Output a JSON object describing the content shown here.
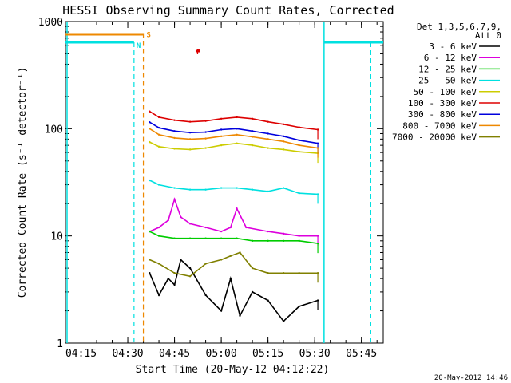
{
  "chart_data": {
    "type": "line",
    "title": "HESSI Observing Summary Count Rates, Corrected",
    "xlabel": "Start Time (20-May-12 04:12:22)",
    "ylabel": "Corrected Count Rate (s⁻¹ detector⁻¹)",
    "yscale": "log",
    "xlim": [
      "04:10",
      "05:52"
    ],
    "ylim": [
      1,
      1000
    ],
    "xticks": [
      "04:15",
      "04:30",
      "04:45",
      "05:00",
      "05:15",
      "05:30",
      "05:45"
    ],
    "yticks": [
      {
        "value": 1,
        "label": "1"
      },
      {
        "value": 10,
        "label": "10"
      },
      {
        "value": 100,
        "label": "100"
      },
      {
        "value": 1000,
        "label": "1000"
      }
    ],
    "legend_header": [
      "Det 1,3,5,6,7,9,",
      "Att 0"
    ],
    "legend_placement": "right",
    "series": [
      {
        "name": "3 - 6 keV",
        "color": "#000000",
        "points": [
          [
            "04:37",
            4.5
          ],
          [
            "04:40",
            2.8
          ],
          [
            "04:43",
            4
          ],
          [
            "04:45",
            3.5
          ],
          [
            "04:47",
            6
          ],
          [
            "04:50",
            5
          ],
          [
            "04:55",
            2.8
          ],
          [
            "05:00",
            2
          ],
          [
            "05:03",
            4
          ],
          [
            "05:06",
            1.8
          ],
          [
            "05:10",
            3
          ],
          [
            "05:15",
            2.5
          ],
          [
            "05:20",
            1.6
          ],
          [
            "05:25",
            2.2
          ],
          [
            "05:31",
            2.5
          ]
        ]
      },
      {
        "name": "6 - 12 keV",
        "color": "#dd00dd",
        "points": [
          [
            "04:37",
            11
          ],
          [
            "04:40",
            12
          ],
          [
            "04:43",
            14
          ],
          [
            "04:45",
            22
          ],
          [
            "04:47",
            15
          ],
          [
            "04:50",
            13
          ],
          [
            "04:55",
            12
          ],
          [
            "05:00",
            11
          ],
          [
            "05:03",
            12
          ],
          [
            "05:05",
            18
          ],
          [
            "05:08",
            12
          ],
          [
            "05:15",
            11
          ],
          [
            "05:20",
            10.5
          ],
          [
            "05:25",
            10
          ],
          [
            "05:31",
            10
          ]
        ]
      },
      {
        "name": "12 - 25 keV",
        "color": "#00cc00",
        "points": [
          [
            "04:37",
            11
          ],
          [
            "04:40",
            10
          ],
          [
            "04:45",
            9.5
          ],
          [
            "04:50",
            9.5
          ],
          [
            "04:55",
            9.5
          ],
          [
            "05:00",
            9.5
          ],
          [
            "05:05",
            9.5
          ],
          [
            "05:10",
            9
          ],
          [
            "05:15",
            9
          ],
          [
            "05:20",
            9
          ],
          [
            "05:25",
            9
          ],
          [
            "05:31",
            8.5
          ]
        ]
      },
      {
        "name": "25 - 50 keV",
        "color": "#00e0e0",
        "points": [
          [
            "04:37",
            33
          ],
          [
            "04:40",
            30
          ],
          [
            "04:45",
            28
          ],
          [
            "04:50",
            27
          ],
          [
            "04:55",
            27
          ],
          [
            "05:00",
            28
          ],
          [
            "05:05",
            28
          ],
          [
            "05:10",
            27
          ],
          [
            "05:15",
            26
          ],
          [
            "05:20",
            28
          ],
          [
            "05:25",
            25
          ],
          [
            "05:31",
            24.5
          ]
        ]
      },
      {
        "name": "50 - 100 keV",
        "color": "#cccc00",
        "points": [
          [
            "04:37",
            75
          ],
          [
            "04:40",
            68
          ],
          [
            "04:45",
            65
          ],
          [
            "04:50",
            64
          ],
          [
            "04:55",
            66
          ],
          [
            "05:00",
            70
          ],
          [
            "05:05",
            73
          ],
          [
            "05:10",
            70
          ],
          [
            "05:15",
            66
          ],
          [
            "05:20",
            64
          ],
          [
            "05:25",
            61
          ],
          [
            "05:31",
            59
          ]
        ]
      },
      {
        "name": "100 - 300 keV",
        "color": "#dd0000",
        "points": [
          [
            "04:37",
            145
          ],
          [
            "04:40",
            128
          ],
          [
            "04:45",
            120
          ],
          [
            "04:50",
            116
          ],
          [
            "04:55",
            118
          ],
          [
            "05:00",
            124
          ],
          [
            "05:05",
            128
          ],
          [
            "05:10",
            124
          ],
          [
            "05:15",
            116
          ],
          [
            "05:20",
            110
          ],
          [
            "05:25",
            103
          ],
          [
            "05:31",
            98
          ]
        ]
      },
      {
        "name": "300 - 800 keV",
        "color": "#0000dd",
        "points": [
          [
            "04:37",
            115
          ],
          [
            "04:40",
            102
          ],
          [
            "04:45",
            95
          ],
          [
            "04:50",
            92
          ],
          [
            "04:55",
            93
          ],
          [
            "05:00",
            98
          ],
          [
            "05:05",
            100
          ],
          [
            "05:10",
            95
          ],
          [
            "05:15",
            90
          ],
          [
            "05:20",
            85
          ],
          [
            "05:25",
            78
          ],
          [
            "05:31",
            73
          ]
        ]
      },
      {
        "name": "800 - 7000 keV",
        "color": "#ee8800",
        "points": [
          [
            "04:37",
            100
          ],
          [
            "04:40",
            88
          ],
          [
            "04:45",
            82
          ],
          [
            "04:50",
            80
          ],
          [
            "04:55",
            81
          ],
          [
            "05:00",
            85
          ],
          [
            "05:05",
            88
          ],
          [
            "05:10",
            84
          ],
          [
            "05:15",
            80
          ],
          [
            "05:20",
            76
          ],
          [
            "05:25",
            70
          ],
          [
            "05:31",
            66
          ]
        ]
      },
      {
        "name": "7000 - 20000 keV",
        "color": "#808000",
        "points": [
          [
            "04:37",
            6
          ],
          [
            "04:40",
            5.5
          ],
          [
            "04:45",
            4.5
          ],
          [
            "04:50",
            4.2
          ],
          [
            "04:55",
            5.5
          ],
          [
            "05:00",
            6
          ],
          [
            "05:03",
            6.5
          ],
          [
            "05:06",
            7
          ],
          [
            "05:10",
            5
          ],
          [
            "05:15",
            4.5
          ],
          [
            "05:20",
            4.5
          ],
          [
            "05:25",
            4.5
          ],
          [
            "05:31",
            4.5
          ]
        ]
      }
    ],
    "markers": [
      {
        "label": "S",
        "time": "04:35",
        "color": "#ee8800"
      },
      {
        "label": "N",
        "time": "04:32",
        "color": "#00e0e0"
      },
      {
        "label": "F",
        "time": "04:51",
        "color": "#dd0000"
      }
    ],
    "timestamp": "20-May-2012 14:46"
  }
}
